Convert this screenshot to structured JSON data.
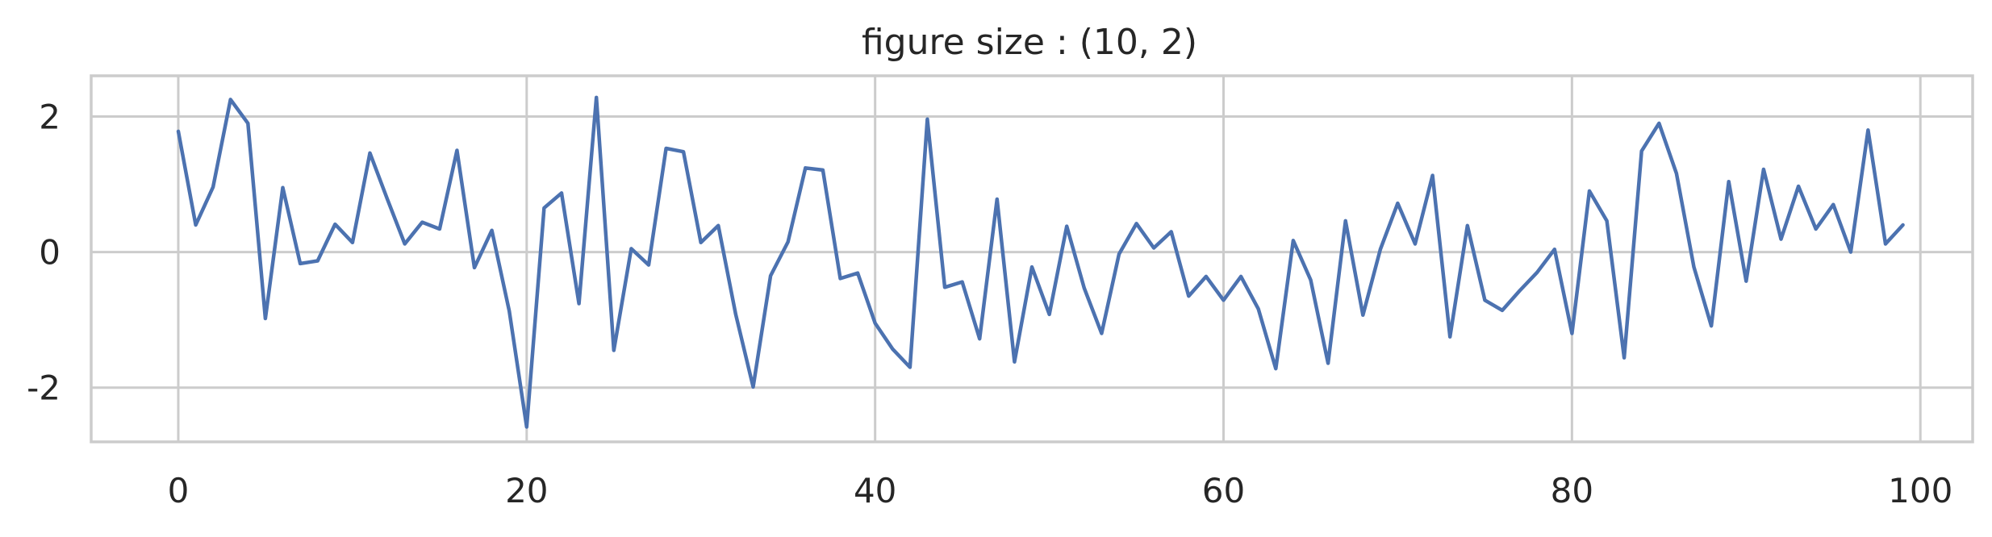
{
  "chart_data": {
    "type": "line",
    "title": "figure size : (10, 2)",
    "xlabel": "",
    "ylabel": "",
    "xlim": [
      -5,
      103
    ],
    "ylim": [
      -2.8,
      2.6
    ],
    "grid": true,
    "x_ticks": [
      0,
      20,
      40,
      60,
      80,
      100
    ],
    "y_ticks": [
      2,
      0,
      -2
    ],
    "x_tick_labels": [
      "0",
      "20",
      "40",
      "60",
      "80",
      "100"
    ],
    "y_tick_labels": [
      "2",
      "0",
      "-2"
    ],
    "series": [
      {
        "color": "#4c72b0",
        "x": [
          0,
          1,
          2,
          3,
          4,
          5,
          6,
          7,
          8,
          9,
          10,
          11,
          12,
          13,
          14,
          15,
          16,
          17,
          18,
          19,
          20,
          21,
          22,
          23,
          24,
          25,
          26,
          27,
          28,
          29,
          30,
          31,
          32,
          33,
          34,
          35,
          36,
          37,
          38,
          39,
          40,
          41,
          42,
          43,
          44,
          45,
          46,
          47,
          48,
          49,
          50,
          51,
          52,
          53,
          54,
          55,
          56,
          57,
          58,
          59,
          60,
          61,
          62,
          63,
          64,
          65,
          66,
          67,
          68,
          69,
          70,
          71,
          72,
          73,
          74,
          75,
          76,
          77,
          78,
          79,
          80,
          81,
          82,
          83,
          84,
          85,
          86,
          87,
          88,
          89,
          90,
          91,
          92,
          93,
          94,
          95,
          96,
          97,
          98,
          99
        ],
        "values": [
          1.78,
          0.4,
          0.96,
          2.25,
          1.9,
          -0.98,
          0.95,
          -0.17,
          -0.13,
          0.41,
          0.14,
          1.46,
          0.78,
          0.12,
          0.44,
          0.34,
          1.5,
          -0.23,
          0.32,
          -0.87,
          -2.58,
          0.65,
          0.87,
          -0.76,
          2.28,
          -1.45,
          0.05,
          -0.19,
          1.53,
          1.48,
          0.14,
          0.39,
          -0.92,
          -1.99,
          -0.35,
          0.15,
          1.24,
          1.21,
          -0.39,
          -0.31,
          -1.05,
          -1.43,
          -1.7,
          1.96,
          -0.52,
          -0.44,
          -1.28,
          0.78,
          -1.62,
          -0.22,
          -0.92,
          0.38,
          -0.53,
          -1.2,
          -0.03,
          0.42,
          0.06,
          0.3,
          -0.65,
          -0.36,
          -0.71,
          -0.36,
          -0.84,
          -1.72,
          0.17,
          -0.41,
          -1.64,
          0.46,
          -0.93,
          0.04,
          0.72,
          0.12,
          1.13,
          -1.25,
          0.39,
          -0.71,
          -0.86,
          -0.57,
          -0.3,
          0.04,
          -1.2,
          0.9,
          0.46,
          -1.56,
          1.49,
          1.9,
          1.16,
          -0.22,
          -1.09,
          1.04,
          -0.43,
          1.22,
          0.19,
          0.97,
          0.34,
          0.7,
          0.0,
          1.8,
          0.12,
          0.4
        ]
      }
    ]
  }
}
